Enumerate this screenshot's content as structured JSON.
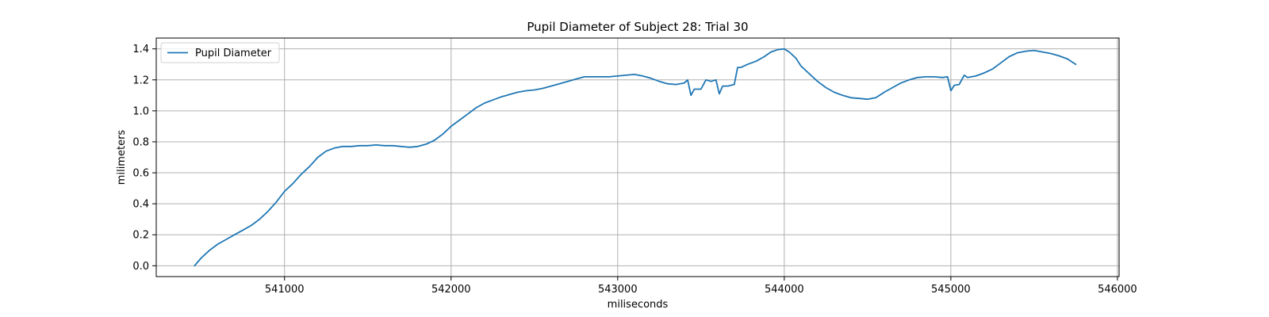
{
  "chart_data": {
    "type": "line",
    "title": "Pupil Diameter of Subject 28: Trial 30",
    "xlabel": "miliseconds",
    "ylabel": "milimeters",
    "xlim": [
      540230,
      546010
    ],
    "ylim": [
      -0.07,
      1.47
    ],
    "xticks": [
      541000,
      542000,
      543000,
      544000,
      545000,
      546000
    ],
    "yticks": [
      0.0,
      0.2,
      0.4,
      0.6,
      0.8,
      1.0,
      1.2,
      1.4
    ],
    "xtick_labels": [
      "541000",
      "542000",
      "543000",
      "544000",
      "545000",
      "546000"
    ],
    "ytick_labels": [
      "0.0",
      "0.2",
      "0.4",
      "0.6",
      "0.8",
      "1.0",
      "1.2",
      "1.4"
    ],
    "grid": true,
    "legend": {
      "placement": "top-left",
      "entries": [
        "Pupil Diameter"
      ]
    },
    "colors": {
      "series": "#1f77b4",
      "grid": "#b0b0b0",
      "axes": "#000000"
    },
    "series": [
      {
        "name": "Pupil Diameter",
        "x": [
          540460,
          540500,
          540550,
          540600,
          540650,
          540700,
          540750,
          540800,
          540850,
          540900,
          540950,
          541000,
          541050,
          541100,
          541150,
          541200,
          541250,
          541300,
          541350,
          541400,
          541450,
          541500,
          541550,
          541600,
          541650,
          541700,
          541750,
          541800,
          541850,
          541900,
          541950,
          542000,
          542050,
          542100,
          542150,
          542200,
          542250,
          542300,
          542350,
          542400,
          542450,
          542500,
          542550,
          542600,
          542650,
          542700,
          542750,
          542800,
          542850,
          542900,
          542950,
          543000,
          543050,
          543100,
          543150,
          543200,
          543250,
          543300,
          543350,
          543400,
          543420,
          543440,
          543460,
          543500,
          543530,
          543560,
          543590,
          543610,
          543630,
          543660,
          543700,
          543720,
          543740,
          543780,
          543830,
          543880,
          543920,
          543960,
          544000,
          544030,
          544070,
          544100,
          544150,
          544200,
          544250,
          544300,
          544350,
          544400,
          544450,
          544500,
          544550,
          544600,
          544650,
          544700,
          544750,
          544800,
          544850,
          544900,
          544950,
          544980,
          545000,
          545020,
          545050,
          545080,
          545100,
          545150,
          545200,
          545250,
          545300,
          545350,
          545400,
          545450,
          545500,
          545550,
          545600,
          545650,
          545700,
          545750
        ],
        "values": [
          0.0,
          0.05,
          0.1,
          0.14,
          0.17,
          0.2,
          0.23,
          0.26,
          0.3,
          0.35,
          0.41,
          0.48,
          0.53,
          0.59,
          0.64,
          0.7,
          0.74,
          0.76,
          0.77,
          0.77,
          0.775,
          0.775,
          0.78,
          0.775,
          0.775,
          0.77,
          0.765,
          0.77,
          0.785,
          0.81,
          0.85,
          0.9,
          0.94,
          0.98,
          1.02,
          1.05,
          1.07,
          1.09,
          1.105,
          1.12,
          1.13,
          1.135,
          1.145,
          1.16,
          1.175,
          1.19,
          1.205,
          1.22,
          1.22,
          1.22,
          1.22,
          1.225,
          1.23,
          1.235,
          1.225,
          1.21,
          1.19,
          1.175,
          1.17,
          1.18,
          1.2,
          1.1,
          1.14,
          1.14,
          1.2,
          1.19,
          1.2,
          1.11,
          1.16,
          1.16,
          1.17,
          1.28,
          1.28,
          1.3,
          1.32,
          1.35,
          1.38,
          1.395,
          1.4,
          1.38,
          1.34,
          1.29,
          1.24,
          1.19,
          1.15,
          1.12,
          1.1,
          1.085,
          1.08,
          1.075,
          1.085,
          1.12,
          1.15,
          1.18,
          1.2,
          1.215,
          1.22,
          1.22,
          1.215,
          1.22,
          1.13,
          1.165,
          1.17,
          1.23,
          1.215,
          1.225,
          1.245,
          1.27,
          1.31,
          1.35,
          1.375,
          1.385,
          1.39,
          1.38,
          1.37,
          1.355,
          1.335,
          1.3
        ]
      }
    ]
  }
}
